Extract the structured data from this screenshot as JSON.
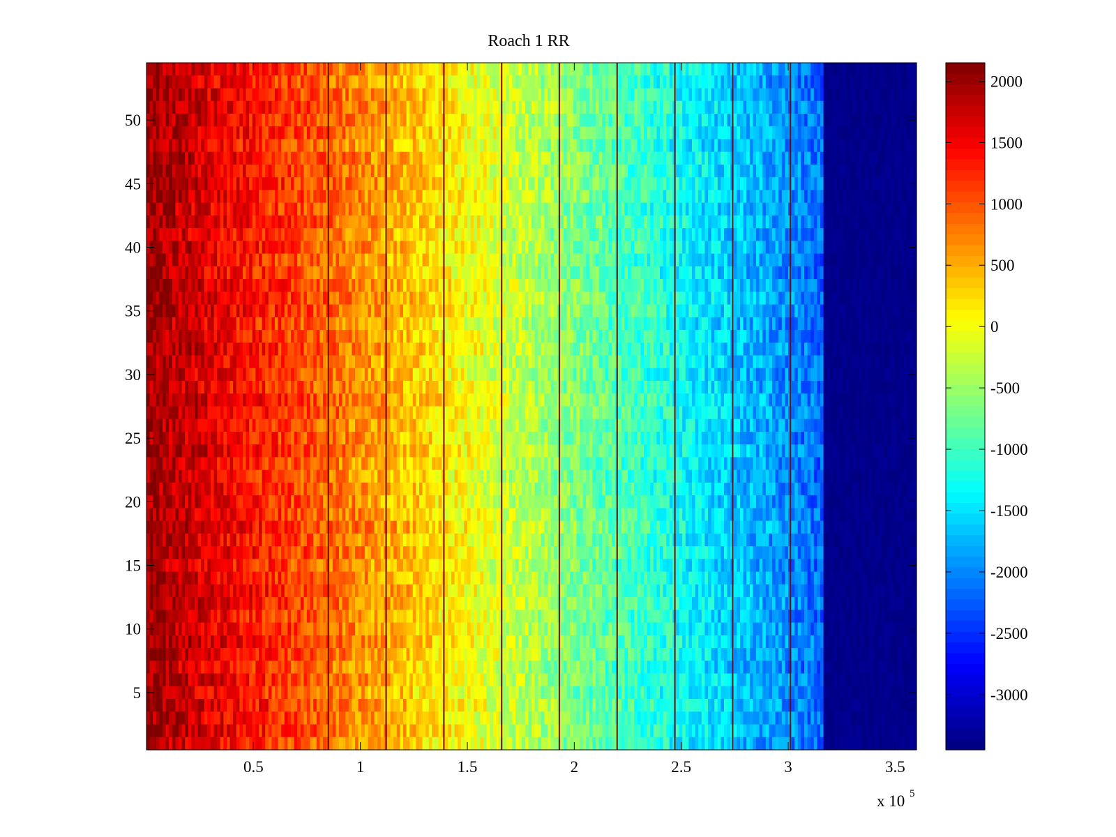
{
  "chart_data": {
    "type": "heatmap",
    "title": "Roach 1 RR",
    "xlabel": "",
    "ylabel": "",
    "x_multiplier": {
      "base": "x 10",
      "exponent": "5"
    },
    "xlim": [
      0,
      3.6
    ],
    "ylim": [
      0.5,
      54.5
    ],
    "x_ticks": [
      0.5,
      1,
      1.5,
      2,
      2.5,
      3,
      3.5
    ],
    "x_tick_labels": [
      "0.5",
      "1",
      "1.5",
      "2",
      "2.5",
      "3",
      "3.5"
    ],
    "y_ticks": [
      5,
      10,
      15,
      20,
      25,
      30,
      35,
      40,
      45,
      50
    ],
    "y_tick_labels": [
      "5",
      "10",
      "15",
      "20",
      "25",
      "30",
      "35",
      "40",
      "45",
      "50"
    ],
    "colorbar": {
      "colormap": "jet",
      "clim": [
        -3450,
        2150
      ],
      "ticks": [
        2000,
        1500,
        1000,
        500,
        0,
        -500,
        -1000,
        -1500,
        -2000,
        -2500,
        -3000
      ],
      "tick_labels": [
        "2000",
        "1500",
        "1000",
        "500",
        "0",
        "-500",
        "-1000",
        "-1500",
        "-2000",
        "-2500",
        "-3000"
      ]
    },
    "rows": 54,
    "data_model": {
      "description": "value decreases roughly linearly with x; column band ends at x≈3.17, beyond which values sit at the colour floor",
      "value_at_x0": 2000,
      "value_at_band_end": -2200,
      "band_end_x": 3.17,
      "floor_value": -3450,
      "noise_amplitude": 380,
      "dark_lines_x": [
        0.85,
        1.12,
        1.39,
        1.66,
        1.93,
        2.2,
        2.47,
        2.74,
        3.01
      ]
    }
  }
}
